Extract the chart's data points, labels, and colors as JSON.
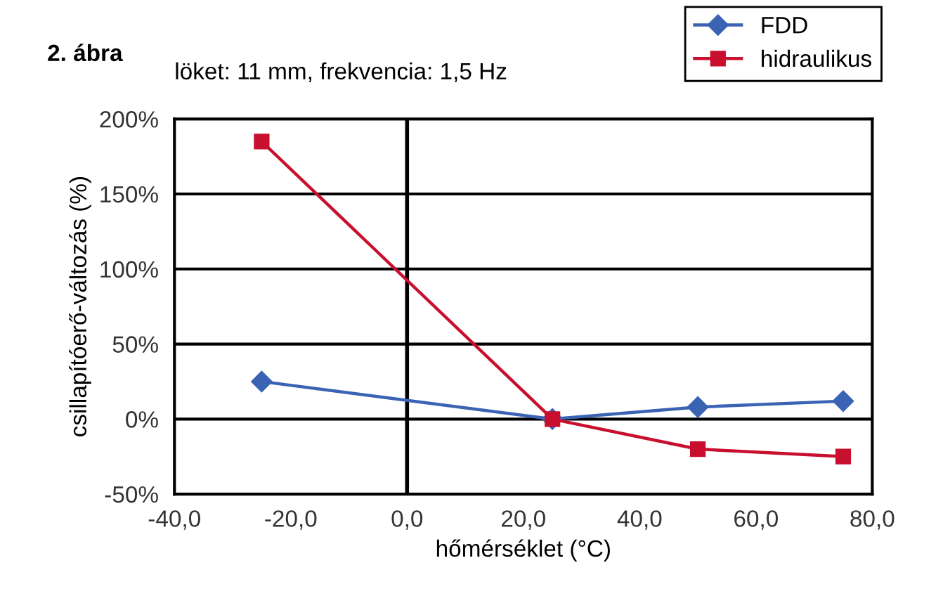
{
  "chart_data": {
    "type": "line",
    "title": "2. ábra",
    "subtitle": "löket: 11 mm, frekvencia: 1,5 Hz",
    "xlabel": "hőmérséklet (°C)",
    "ylabel": "csillapítóerő-változás (%)",
    "series": [
      {
        "name": "FDD",
        "color": "#3a63b4",
        "marker": "diamond",
        "x": [
          -25,
          25,
          50,
          75
        ],
        "values": [
          25,
          0,
          8,
          12
        ]
      },
      {
        "name": "hidraulikus",
        "color": "#c8102e",
        "marker": "square",
        "x": [
          -25,
          25,
          50,
          75
        ],
        "values": [
          185,
          0,
          -20,
          -25
        ]
      }
    ],
    "xlim": [
      -40,
      80
    ],
    "xticks": [
      {
        "value": -40,
        "label": "-40,0"
      },
      {
        "value": -20,
        "label": "-20,0"
      },
      {
        "value": 0,
        "label": "0,0"
      },
      {
        "value": 20,
        "label": "20,0"
      },
      {
        "value": 40,
        "label": "40,0"
      },
      {
        "value": 60,
        "label": "60,0"
      },
      {
        "value": 80,
        "label": "80,0"
      }
    ],
    "ylim": [
      -50,
      200
    ],
    "yticks": [
      {
        "value": -50,
        "label": "-50%"
      },
      {
        "value": 0,
        "label": "0%"
      },
      {
        "value": 50,
        "label": "50%"
      },
      {
        "value": 100,
        "label": "100%"
      },
      {
        "value": 150,
        "label": "150%"
      },
      {
        "value": 200,
        "label": "200%"
      }
    ],
    "ref_lines": [
      {
        "axis": "x",
        "value": 0,
        "color": "#000000"
      }
    ],
    "grid": "y",
    "legend": "top right",
    "line_style": "solid"
  }
}
